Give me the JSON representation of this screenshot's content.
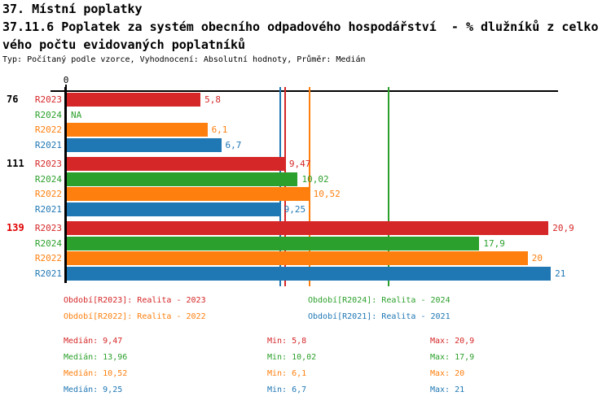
{
  "title": {
    "line1": "37. Místní poplatky",
    "line2": "37.11.6 Poplatek za systém obecního odpadového hospodářství  - % dlužníků z celko",
    "line3": "vého počtu evidovaných poplatníků",
    "meta": "Typ: Počítaný podle vzorce, Vyhodnocení: Absolutní hodnoty, Průměr: Medián"
  },
  "colors": {
    "R2023": "#d62728",
    "R2024": "#2ca02c",
    "R2022": "#ff7f0e",
    "R2021": "#1f77b4",
    "axis": "#000000",
    "group_label": "#000000",
    "highlighted_group_label": "#e00000"
  },
  "chart_data": {
    "type": "bar",
    "orientation": "horizontal",
    "xlabel": "",
    "ylabel": "",
    "xlim": [
      0,
      21.5
    ],
    "x_tick_labels": [
      "0"
    ],
    "grid": false,
    "series_order": [
      "R2023",
      "R2024",
      "R2022",
      "R2021"
    ],
    "groups": [
      {
        "label": "76",
        "highlighted": false,
        "bars": [
          {
            "series": "R2023",
            "value": 5.8,
            "label": "5,8"
          },
          {
            "series": "R2024",
            "value": null,
            "label": "NA"
          },
          {
            "series": "R2022",
            "value": 6.1,
            "label": "6,1"
          },
          {
            "series": "R2021",
            "value": 6.7,
            "label": "6,7"
          }
        ]
      },
      {
        "label": "111",
        "highlighted": false,
        "bars": [
          {
            "series": "R2023",
            "value": 9.47,
            "label": "9,47"
          },
          {
            "series": "R2024",
            "value": 10.02,
            "label": "10,02"
          },
          {
            "series": "R2022",
            "value": 10.52,
            "label": "10,52"
          },
          {
            "series": "R2021",
            "value": 9.25,
            "label": "9,25"
          }
        ]
      },
      {
        "label": "139",
        "highlighted": true,
        "bars": [
          {
            "series": "R2023",
            "value": 20.9,
            "label": "20,9"
          },
          {
            "series": "R2024",
            "value": 17.9,
            "label": "17,9"
          },
          {
            "series": "R2022",
            "value": 20,
            "label": "20"
          },
          {
            "series": "R2021",
            "value": 21,
            "label": "21"
          }
        ]
      }
    ],
    "median_lines": [
      {
        "series": "R2023",
        "value": 9.47
      },
      {
        "series": "R2024",
        "value": 13.96
      },
      {
        "series": "R2022",
        "value": 10.52
      },
      {
        "series": "R2021",
        "value": 9.25
      }
    ]
  },
  "legend": [
    {
      "series": "R2023",
      "text": "Období[R2023]: Realita - 2023"
    },
    {
      "series": "R2024",
      "text": "Období[R2024]: Realita - 2024"
    },
    {
      "series": "R2022",
      "text": "Období[R2022]: Realita - 2022"
    },
    {
      "series": "R2021",
      "text": "Období[R2021]: Realita - 2021"
    }
  ],
  "stats": [
    {
      "series": "R2023",
      "median": "Medián: 9,47",
      "min": "Min: 5,8",
      "max": "Max: 20,9"
    },
    {
      "series": "R2024",
      "median": "Medián: 13,96",
      "min": "Min: 10,02",
      "max": "Max: 17,9"
    },
    {
      "series": "R2022",
      "median": "Medián: 10,52",
      "min": "Min: 6,1",
      "max": "Max: 20"
    },
    {
      "series": "R2021",
      "median": "Medián: 9,25",
      "min": "Min: 6,7",
      "max": "Max: 21"
    }
  ]
}
